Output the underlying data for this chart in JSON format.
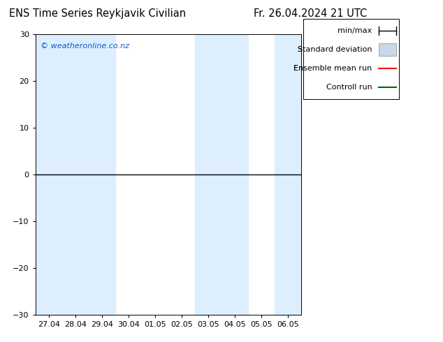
{
  "title_left": "ENS Time Series Reykjavik Civilian",
  "title_right": "Fr. 26.04.2024 21 UTC",
  "watermark": "© weatheronline.co.nz",
  "ylim": [
    -30,
    30
  ],
  "yticks": [
    -30,
    -20,
    -10,
    0,
    10,
    20,
    30
  ],
  "x_tick_labels": [
    "27.04",
    "28.04",
    "29.04",
    "30.04",
    "01.05",
    "02.05",
    "03.05",
    "04.05",
    "05.05",
    "06.05"
  ],
  "background_color": "#ffffff",
  "plot_bg_color": "#ffffff",
  "stripe_color": "#ddeeff",
  "stripe_columns": [
    0,
    1,
    2,
    6,
    7,
    9
  ],
  "zero_line_color": "#000000",
  "control_run_color": "#006600",
  "legend_items": [
    {
      "label": "min/max",
      "color": "#000000",
      "style": "line_with_ticks"
    },
    {
      "label": "Standard deviation",
      "color": "#c8d8e8",
      "style": "box"
    },
    {
      "label": "Ensemble mean run",
      "color": "#ff0000",
      "style": "line"
    },
    {
      "label": "Controll run",
      "color": "#006600",
      "style": "line"
    }
  ],
  "title_fontsize": 10.5,
  "tick_fontsize": 8,
  "watermark_fontsize": 8,
  "legend_fontsize": 8,
  "num_days": 10
}
